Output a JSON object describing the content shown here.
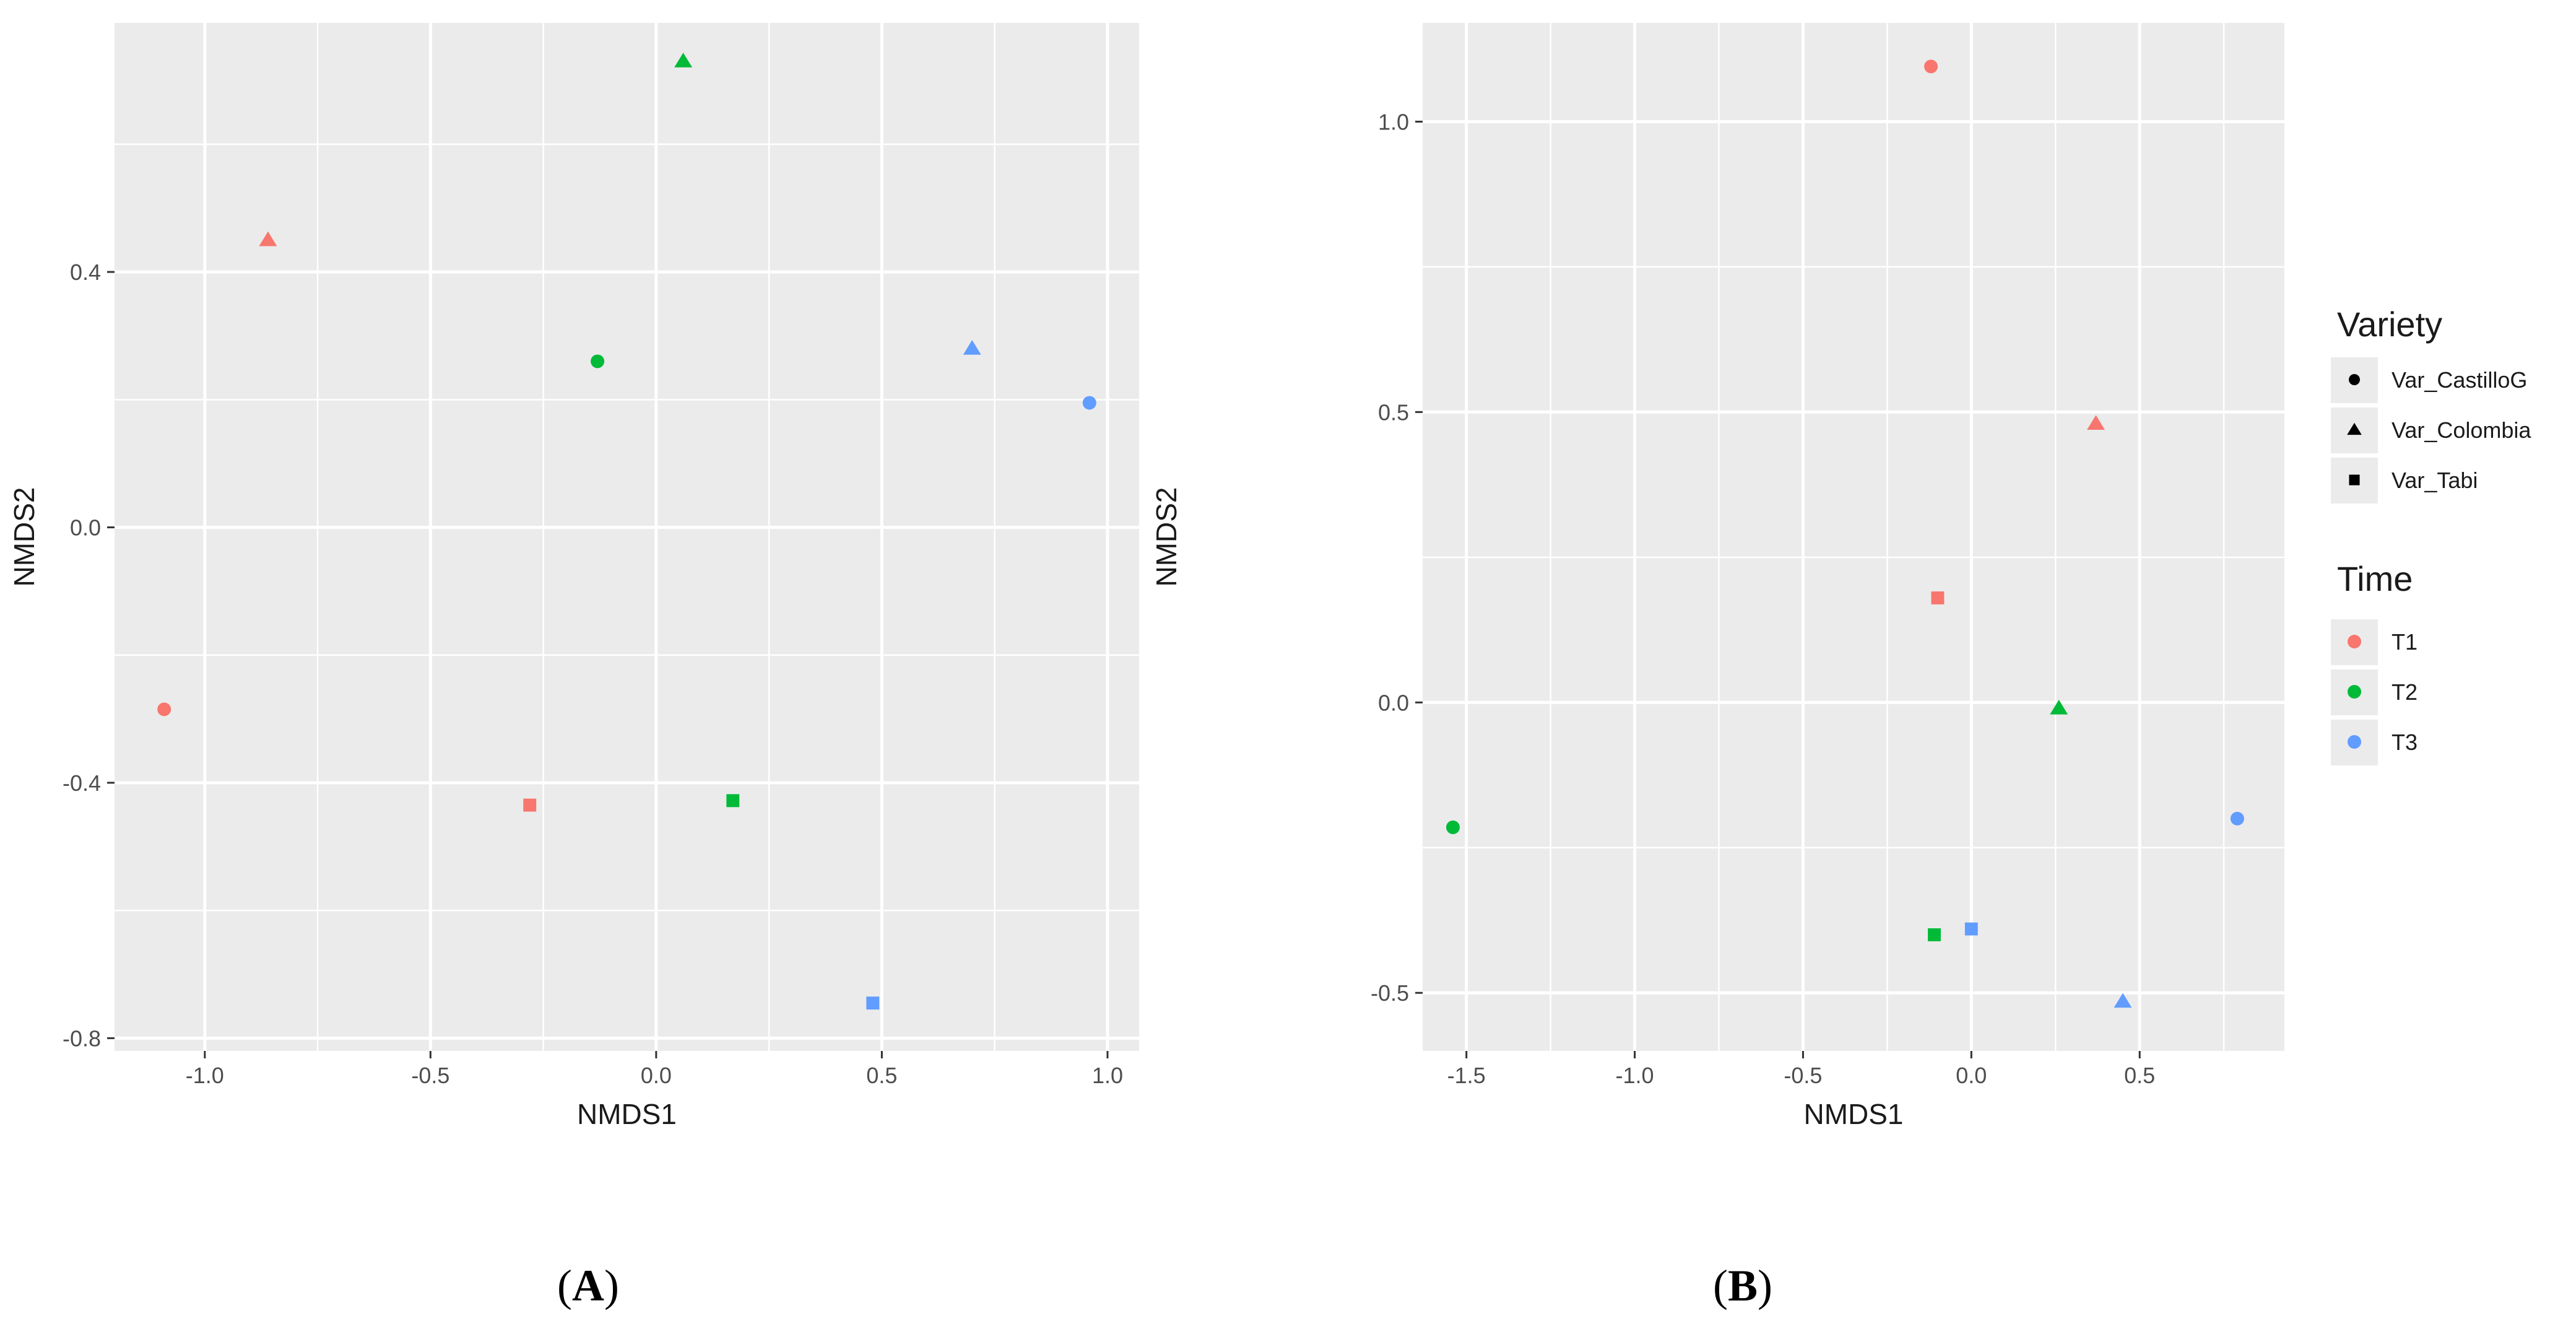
{
  "chart_data": [
    {
      "type": "scatter",
      "panel_label_prefix": "(",
      "panel_label_letter": "A",
      "panel_label_suffix": ")",
      "xlabel": "NMDS1",
      "ylabel": "NMDS2",
      "xlim": [
        -1.2,
        1.07
      ],
      "ylim": [
        -0.82,
        0.79
      ],
      "xticks": [
        -1.0,
        -0.5,
        0.0,
        0.5,
        1.0
      ],
      "xtick_labels": [
        "-1.0",
        "-0.5",
        "0.0",
        "0.5",
        "1.0"
      ],
      "yticks": [
        -0.8,
        -0.4,
        0.0,
        0.4
      ],
      "ytick_labels": [
        "-0.8",
        "-0.4",
        "0.0",
        "0.4"
      ],
      "points": [
        {
          "x": 0.06,
          "y": 0.73,
          "time": "T2",
          "variety": "Var_Colombia"
        },
        {
          "x": -0.86,
          "y": 0.45,
          "time": "T1",
          "variety": "Var_Colombia"
        },
        {
          "x": -0.13,
          "y": 0.26,
          "time": "T2",
          "variety": "Var_CastilloG"
        },
        {
          "x": 0.7,
          "y": 0.28,
          "time": "T3",
          "variety": "Var_Colombia"
        },
        {
          "x": 0.96,
          "y": 0.195,
          "time": "T3",
          "variety": "Var_CastilloG"
        },
        {
          "x": -1.09,
          "y": -0.285,
          "time": "T1",
          "variety": "Var_CastilloG"
        },
        {
          "x": -0.28,
          "y": -0.435,
          "time": "T1",
          "variety": "Var_Tabi"
        },
        {
          "x": 0.17,
          "y": -0.428,
          "time": "T2",
          "variety": "Var_Tabi"
        },
        {
          "x": 0.48,
          "y": -0.745,
          "time": "T3",
          "variety": "Var_Tabi"
        }
      ]
    },
    {
      "type": "scatter",
      "panel_label_prefix": "(",
      "panel_label_letter": "B",
      "panel_label_suffix": ")",
      "xlabel": "NMDS1",
      "ylabel": "NMDS2",
      "xlim": [
        -1.63,
        0.93
      ],
      "ylim": [
        -0.6,
        1.17
      ],
      "xticks": [
        -1.5,
        -1.0,
        -0.5,
        0.0,
        0.5
      ],
      "xtick_labels": [
        "-1.5",
        "-1.0",
        "-0.5",
        "0.0",
        "0.5"
      ],
      "yticks": [
        -0.5,
        0.0,
        0.5,
        1.0
      ],
      "ytick_labels": [
        "-0.5",
        "0.0",
        "0.5",
        "1.0"
      ],
      "points": [
        {
          "x": -0.12,
          "y": 1.095,
          "time": "T1",
          "variety": "Var_CastilloG"
        },
        {
          "x": 0.37,
          "y": 0.48,
          "time": "T1",
          "variety": "Var_Colombia"
        },
        {
          "x": -0.1,
          "y": 0.18,
          "time": "T1",
          "variety": "Var_Tabi"
        },
        {
          "x": 0.26,
          "y": -0.01,
          "time": "T2",
          "variety": "Var_Colombia"
        },
        {
          "x": -1.54,
          "y": -0.215,
          "time": "T2",
          "variety": "Var_CastilloG"
        },
        {
          "x": 0.79,
          "y": -0.2,
          "time": "T3",
          "variety": "Var_CastilloG"
        },
        {
          "x": -0.11,
          "y": -0.4,
          "time": "T2",
          "variety": "Var_Tabi"
        },
        {
          "x": 0.0,
          "y": -0.39,
          "time": "T3",
          "variety": "Var_Tabi"
        },
        {
          "x": 0.45,
          "y": -0.515,
          "time": "T3",
          "variety": "Var_Colombia"
        }
      ]
    }
  ],
  "legend": {
    "variety_title": "Variety",
    "variety_items": [
      {
        "label": "Var_CastilloG",
        "shape": "circle"
      },
      {
        "label": "Var_Colombia",
        "shape": "triangle"
      },
      {
        "label": "Var_Tabi",
        "shape": "square"
      }
    ],
    "time_title": "Time",
    "time_items": [
      {
        "label": "T1",
        "color": "#F8766D"
      },
      {
        "label": "T2",
        "color": "#00BA38"
      },
      {
        "label": "T3",
        "color": "#619CFF"
      }
    ]
  },
  "colors": {
    "T1": "#F8766D",
    "T2": "#00BA38",
    "T3": "#619CFF",
    "panel_bg": "#EBEBEB",
    "grid": "#FFFFFF"
  }
}
